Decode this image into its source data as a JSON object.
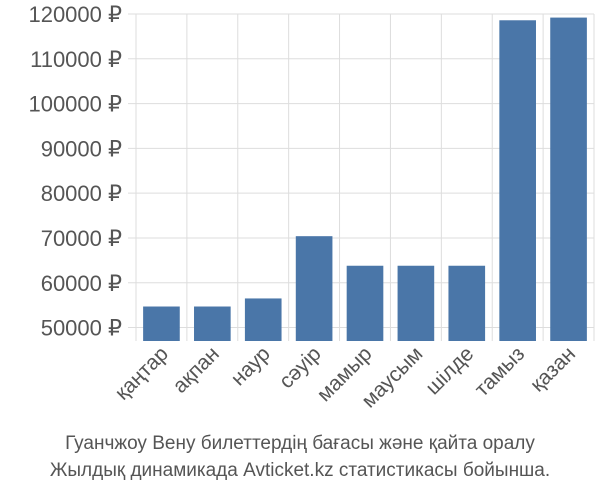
{
  "caption": {
    "line1": "Гуанчжоу Вену билеттердің бағасы және қайта оралу",
    "line2": "Жылдық динамикада Avticket.kz статистикасы бойынша."
  },
  "chart_data": {
    "type": "bar",
    "categories": [
      "қаңтар",
      "ақпан",
      "наур",
      "сәуір",
      "мамыр",
      "маусым",
      "шілде",
      "тамыз",
      "қазан"
    ],
    "values": [
      54700,
      54700,
      56500,
      70400,
      63800,
      63800,
      63800,
      118600,
      119200
    ],
    "yticks": [
      "50000 ₽",
      "60000 ₽",
      "70000 ₽",
      "80000 ₽",
      "90000 ₽",
      "100000 ₽",
      "110000 ₽",
      "120000 ₽"
    ],
    "yticks_values": [
      50000,
      60000,
      70000,
      80000,
      90000,
      100000,
      110000,
      120000
    ],
    "ylim": [
      47000,
      120000
    ],
    "currency": "₽",
    "bar_color": "#4a76a8",
    "grid": true,
    "grid_color": "#dddddd",
    "legend": "none"
  }
}
